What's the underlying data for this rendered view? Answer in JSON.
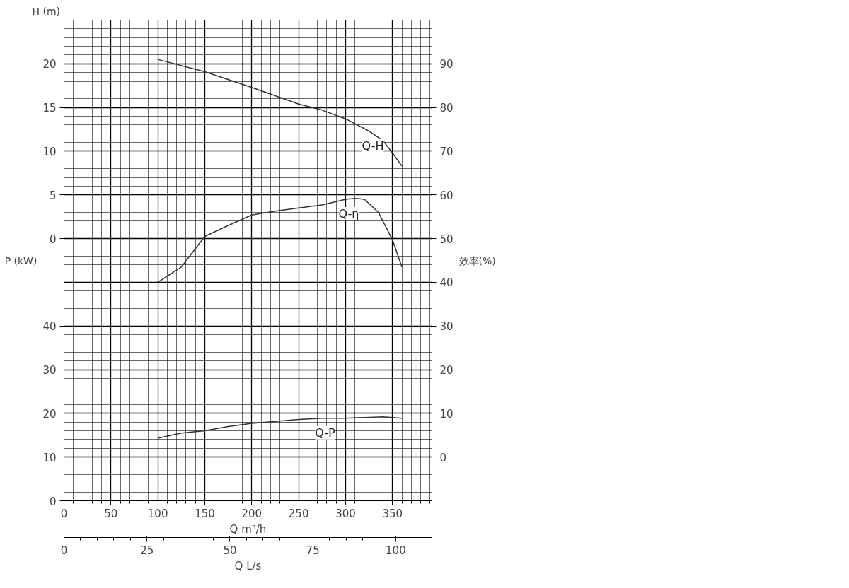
{
  "chart_data": {
    "type": "line",
    "xlabel": "Q m³/h",
    "x2label": "Q L/s",
    "ylabel": "P (kW)",
    "y2label": "效率(%)",
    "y3label": "H (m)",
    "xlim": [
      0,
      392
    ],
    "xticks": [
      0,
      50,
      100,
      150,
      200,
      250,
      300,
      350
    ],
    "x2lim": [
      0,
      110.9
    ],
    "x2ticks": [
      0,
      25,
      50,
      75,
      100
    ],
    "ylim": [
      0,
      110
    ],
    "yticks": [
      0,
      10,
      20,
      30,
      40
    ],
    "y2lim": [
      -10,
      100
    ],
    "y2ticks": [
      0,
      10,
      20,
      30,
      40,
      50,
      60,
      70,
      80,
      90
    ],
    "y3lim": [
      -30,
      25
    ],
    "y3ticks": [
      0,
      5,
      10,
      15,
      20
    ],
    "grid": true,
    "legend": false,
    "marker": "none",
    "line_style": "solid",
    "series": [
      {
        "name": "Q-H",
        "color": "#333333",
        "axis": "y3",
        "x": [
          100,
          150,
          200,
          250,
          275,
          300,
          325,
          340,
          350,
          360
        ],
        "values": [
          20.5,
          19.1,
          17.3,
          15.4,
          14.7,
          13.7,
          12.3,
          11.2,
          9.8,
          8.3
        ]
      },
      {
        "name": "Q-η",
        "color": "#333333",
        "axis": "y2",
        "x": [
          100,
          125,
          150,
          175,
          200,
          225,
          250,
          275,
          300,
          310,
          320,
          335,
          350,
          360
        ],
        "values": [
          40,
          43.5,
          50.5,
          53,
          55.4,
          56.3,
          57,
          57.7,
          59,
          59.2,
          59,
          56,
          49.7,
          43.5
        ]
      },
      {
        "name": "Q-P",
        "color": "#333333",
        "x": [
          100,
          125,
          150,
          175,
          200,
          250,
          275,
          300,
          325,
          340,
          360
        ],
        "values": [
          14.3,
          15.5,
          16,
          17,
          17.7,
          18.6,
          18.9,
          18.9,
          19.1,
          19.2,
          18.9
        ]
      }
    ]
  }
}
